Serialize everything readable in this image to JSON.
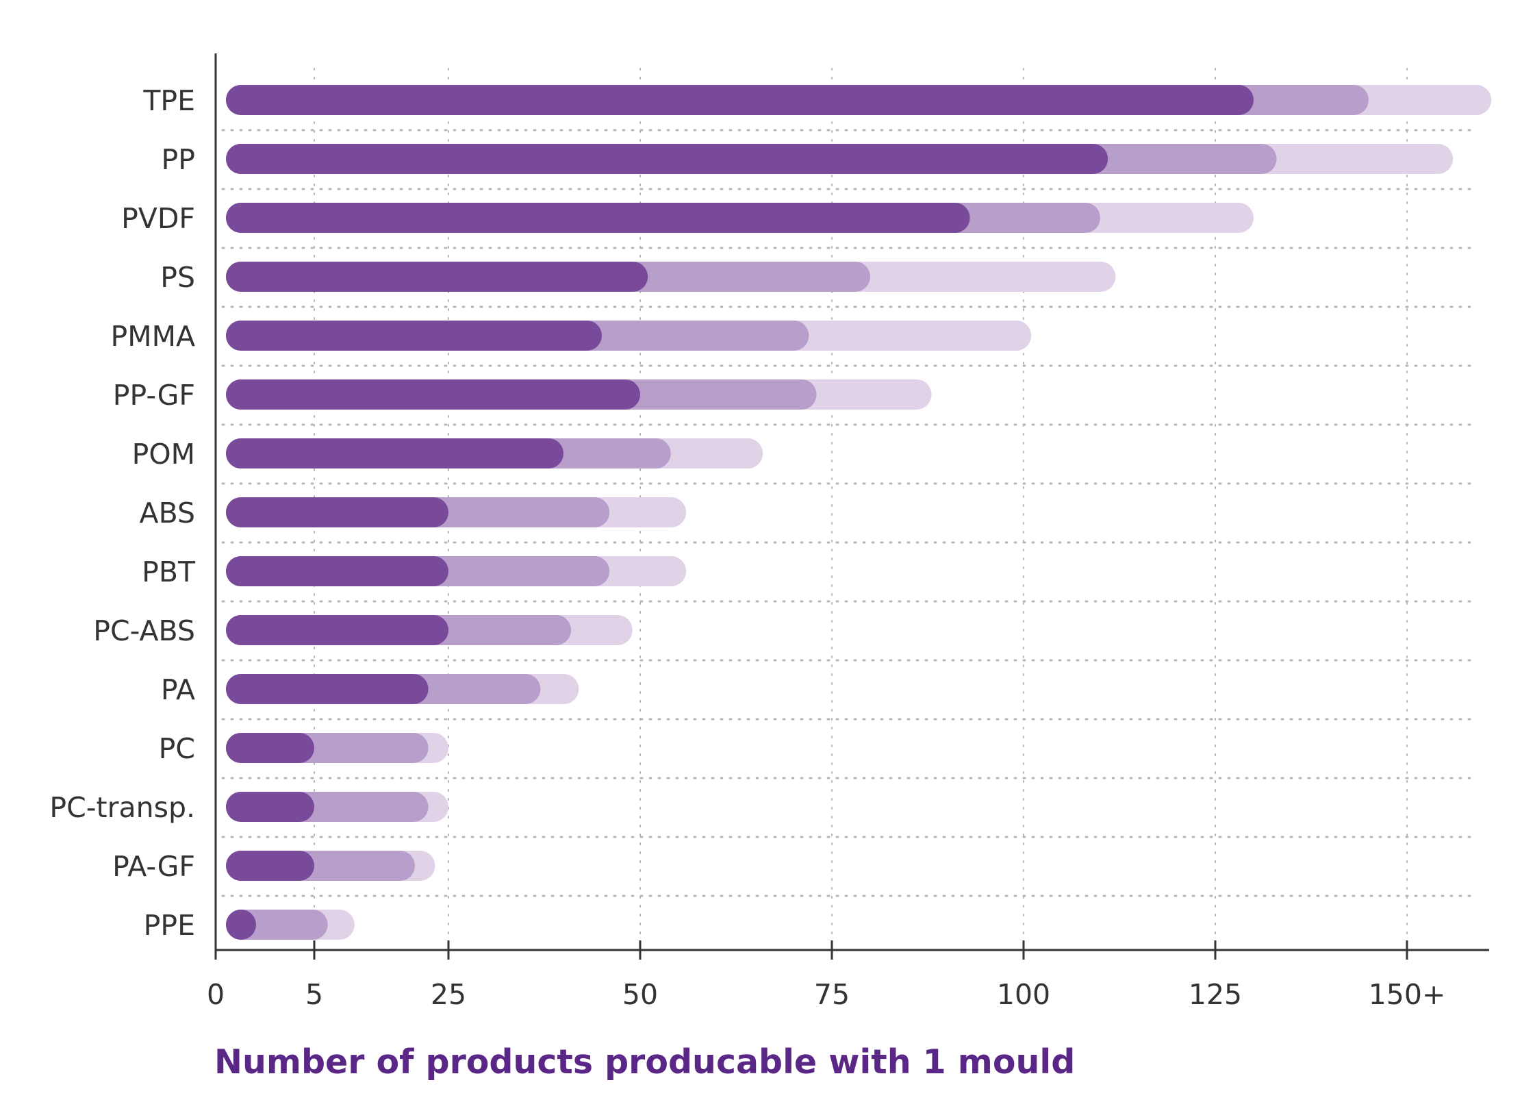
{
  "chart_data": {
    "type": "bar",
    "orientation": "horizontal",
    "stacked": "overlay",
    "xlabel": "Number of products producable with 1 mould",
    "xticks": [
      "0",
      "5",
      "25",
      "50",
      "75",
      "100",
      "125",
      "150+"
    ],
    "xtick_values": [
      0,
      5,
      25,
      50,
      75,
      100,
      125,
      150
    ],
    "xlim": [
      0,
      162
    ],
    "grid": true,
    "categories": [
      "TPE",
      "PP",
      "PVDF",
      "PS",
      "PMMA",
      "PP-GF",
      "POM",
      "ABS",
      "PBT",
      "PC-ABS",
      "PA",
      "PC",
      "PC-transp.",
      "PA-GF",
      "PPE"
    ],
    "series": [
      {
        "color": "#e0d3e8",
        "values": [
          161,
          156,
          130,
          112,
          101,
          88,
          66,
          56,
          56,
          49,
          42,
          25,
          25,
          23,
          11
        ]
      },
      {
        "color": "#b89fcb",
        "values": [
          145,
          133,
          110,
          80,
          72,
          73,
          54,
          46,
          46,
          41,
          37,
          22,
          22,
          20,
          7
        ]
      },
      {
        "color": "#7a4a9a",
        "values": [
          130,
          111,
          93,
          51,
          45,
          50,
          40,
          25,
          25,
          25,
          22,
          5,
          5,
          5,
          2
        ]
      }
    ]
  }
}
